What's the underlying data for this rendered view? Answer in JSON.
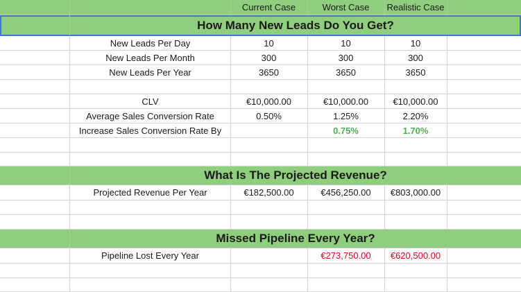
{
  "columns": {
    "current": "Current Case",
    "worst": "Worst Case",
    "realistic": "Realistic Case"
  },
  "sections": {
    "leads_title": "How Many New Leads Do You Get?",
    "revenue_title": "What Is The Projected Revenue?",
    "pipeline_title": "Missed Pipeline Every Year?"
  },
  "leads": {
    "per_day": {
      "label": "New Leads Per Day",
      "current": "10",
      "worst": "10",
      "realistic": "10"
    },
    "per_month": {
      "label": "New Leads Per Month",
      "current": "300",
      "worst": "300",
      "realistic": "300"
    },
    "per_year": {
      "label": "New Leads Per Year",
      "current": "3650",
      "worst": "3650",
      "realistic": "3650"
    }
  },
  "metrics": {
    "clv": {
      "label": "CLV",
      "current": "€10,000.00",
      "worst": "€10,000.00",
      "realistic": "€10,000.00"
    },
    "conversion": {
      "label": "Average Sales Conversion Rate",
      "current": "0.50%",
      "worst": "1.25%",
      "realistic": "2.20%"
    },
    "increase": {
      "label": "Increase Sales Conversion Rate By",
      "current": "",
      "worst": "0.75%",
      "realistic": "1.70%"
    }
  },
  "revenue": {
    "projected": {
      "label": "Projected Revenue Per Year",
      "current": "€182,500.00",
      "worst": "€456,250.00",
      "realistic": "€803,000.00"
    }
  },
  "pipeline": {
    "lost": {
      "label": "Pipeline Lost Every Year",
      "current": "",
      "worst": "€273,750.00",
      "realistic": "€620,500.00"
    }
  },
  "colors": {
    "section_green": "#8fce7c",
    "positive_green": "#4caf50",
    "negative_red": "#e0001b",
    "selection_blue": "#3c78d8"
  }
}
